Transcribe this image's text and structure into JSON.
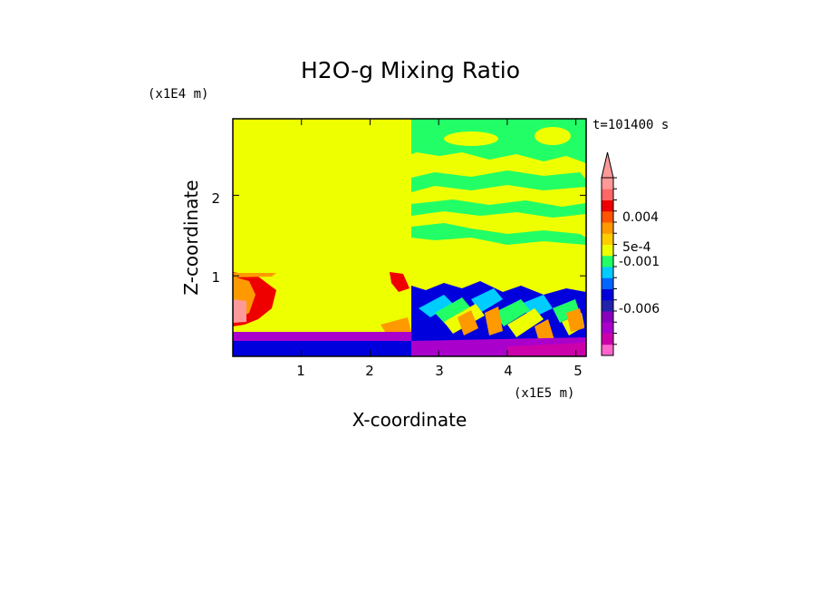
{
  "chart_data": {
    "type": "heatmap",
    "title": "H2O-g Mixing Ratio",
    "xlabel": "X-coordinate",
    "ylabel": "Z-coordinate",
    "x_units": "(x1E5 m)",
    "y_units": "(x1E4 m)",
    "time_label": "t=101400 s",
    "xlim": [
      0,
      5.15
    ],
    "ylim": [
      0,
      2.95
    ],
    "x_ticks": [
      "1",
      "2",
      "3",
      "4",
      "5"
    ],
    "y_ticks": [
      "1",
      "2"
    ],
    "colorbar": {
      "tick_labels": [
        "0.004",
        "5e-4",
        "-0.001",
        "-0.006"
      ],
      "levels": [
        {
          "color": "#ff66cc",
          "value": "-0.009"
        },
        {
          "color": "#cc00aa",
          "value": "-0.008"
        },
        {
          "color": "#aa00cc",
          "value": "-0.007"
        },
        {
          "color": "#8800bb",
          "value": "-0.006"
        },
        {
          "color": "#2222aa",
          "value": "-0.004"
        },
        {
          "color": "#0000dd",
          "value": "-0.002"
        },
        {
          "color": "#0066ff",
          "value": "-0.001"
        },
        {
          "color": "#00ccff",
          "value": "-5e-4"
        },
        {
          "color": "#22ff66",
          "value": "0"
        },
        {
          "color": "#eeff00",
          "value": "2.5e-4"
        },
        {
          "color": "#ffcc00",
          "value": "5e-4"
        },
        {
          "color": "#ff9900",
          "value": "0.001"
        },
        {
          "color": "#ff5500",
          "value": "0.002"
        },
        {
          "color": "#ee0000",
          "value": "0.004"
        },
        {
          "color": "#ff6666",
          "value": "0.006"
        },
        {
          "color": "#ff9999",
          "value": "0.008"
        }
      ],
      "overflow_color": "#ff9999"
    },
    "regions": [
      {
        "name": "background",
        "color": "#eeff00"
      },
      {
        "name": "upper-green-bands",
        "color": "#22ff66"
      },
      {
        "name": "lower-blue-layer",
        "color": "#0000dd"
      },
      {
        "name": "surface-purple-layer",
        "color": "#aa00cc"
      },
      {
        "name": "left-red-plume",
        "color": "#ee0000"
      },
      {
        "name": "orange-plumes",
        "color": "#ff9900"
      }
    ]
  }
}
